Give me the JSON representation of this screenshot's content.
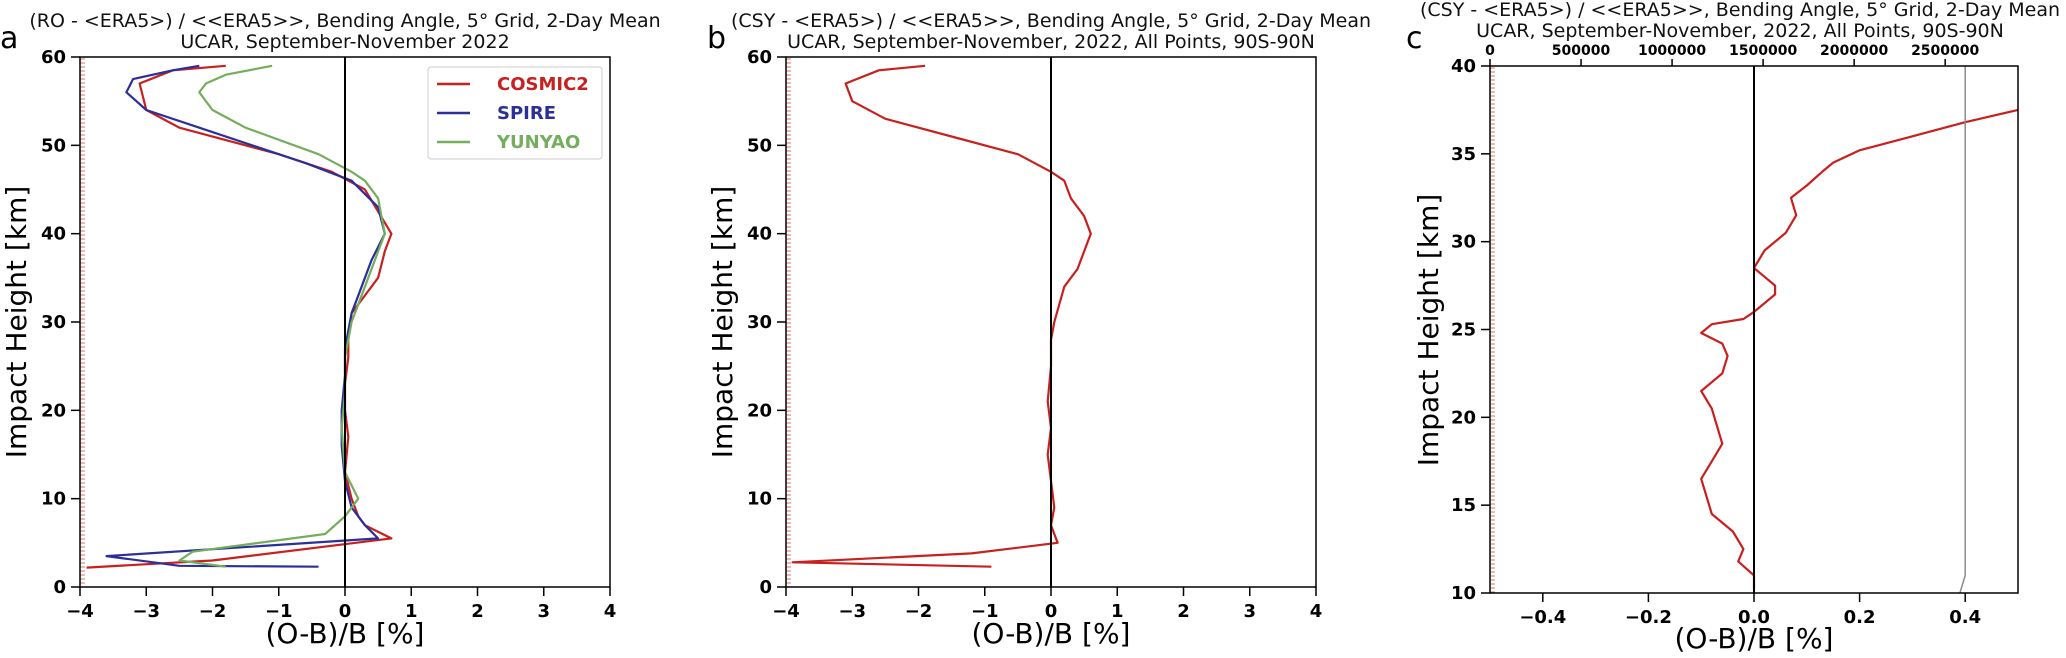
{
  "chart_data": [
    {
      "panel": "a",
      "type": "line",
      "title": "(RO - <ERA5>) / <<ERA5>>, Bending Angle, 5° Grid, 2-Day Mean",
      "subtitle": "UCAR, September-November 2022",
      "xlabel": "(O-B)/B [%]",
      "ylabel": "Impact Height [km]",
      "xlim": [
        -4,
        4
      ],
      "ylim": [
        0,
        60
      ],
      "xticks": [
        -4,
        -3,
        -2,
        -1,
        0,
        1,
        2,
        3,
        4
      ],
      "yticks": [
        0,
        10,
        20,
        30,
        40,
        50,
        60
      ],
      "legend_position": "top-right",
      "series": [
        {
          "name": "COSMIC2",
          "color": "#c8201e",
          "x": [
            -3.9,
            -2.0,
            0.7,
            0.3,
            0.2,
            0.1,
            0.0,
            0.05,
            0.0,
            0.0,
            0.05,
            0.05,
            0.1,
            0.3,
            0.5,
            0.6,
            0.7,
            0.3,
            -0.2,
            -1.0,
            -2.5,
            -3.0,
            -3.1,
            -2.6,
            -1.8
          ],
          "y": [
            2.2,
            3.0,
            5.5,
            7.0,
            8.0,
            10.0,
            13.0,
            17.0,
            20.0,
            23.0,
            26.0,
            28.0,
            31.0,
            33.0,
            35.0,
            38.0,
            40.0,
            45.0,
            47.0,
            49.0,
            52.0,
            54.0,
            57.0,
            58.5,
            59.0
          ]
        },
        {
          "name": "SPIRE",
          "color": "#2b2f9a",
          "x": [
            -0.4,
            -2.5,
            -3.6,
            0.5,
            0.3,
            0.1,
            0.0,
            -0.05,
            -0.05,
            0.0,
            0.0,
            0.05,
            0.1,
            0.25,
            0.4,
            0.6,
            0.5,
            0.1,
            -0.6,
            -2.2,
            -3.0,
            -3.3,
            -3.2,
            -2.6,
            -2.2
          ],
          "y": [
            2.3,
            2.4,
            3.5,
            5.5,
            7.0,
            9.0,
            12.0,
            16.0,
            20.0,
            24.0,
            27.0,
            29.0,
            31.0,
            34.0,
            37.0,
            40.0,
            43.0,
            46.0,
            48.0,
            52.0,
            54.0,
            56.0,
            57.5,
            58.5,
            59.0
          ]
        },
        {
          "name": "YUNYAO",
          "color": "#74ad5c",
          "x": [
            -1.8,
            -2.5,
            -2.3,
            -0.3,
            0.0,
            0.2,
            0.0,
            -0.05,
            0.0,
            0.0,
            0.05,
            0.1,
            0.3,
            0.6,
            0.5,
            0.3,
            0.1,
            -0.4,
            -1.5,
            -2.0,
            -2.2,
            -2.1,
            -1.8,
            -1.1
          ],
          "y": [
            2.3,
            3.0,
            4.0,
            6.0,
            8.0,
            10.0,
            13.0,
            18.0,
            22.0,
            26.0,
            28.0,
            30.0,
            34.0,
            40.0,
            44.0,
            46.0,
            47.0,
            49.0,
            52.0,
            54.0,
            56.0,
            57.0,
            58.0,
            59.0
          ]
        }
      ]
    },
    {
      "panel": "b",
      "type": "line",
      "title": "(CSY - <ERA5>) / <<ERA5>>, Bending Angle, 5° Grid, 2-Day Mean",
      "subtitle": "UCAR, September-November, 2022, All Points, 90S-90N",
      "xlabel": "(O-B)/B [%]",
      "ylabel": "Impact Height [km]",
      "xlim": [
        -4,
        4
      ],
      "ylim": [
        0,
        60
      ],
      "xticks": [
        -4,
        -3,
        -2,
        -1,
        0,
        1,
        2,
        3,
        4
      ],
      "yticks": [
        0,
        10,
        20,
        30,
        40,
        50,
        60
      ],
      "series": [
        {
          "name": "",
          "color": "#c8201e",
          "x": [
            -0.9,
            -3.9,
            -1.2,
            0.1,
            0.0,
            0.05,
            0.0,
            -0.05,
            0.0,
            -0.05,
            0.0,
            0.0,
            0.05,
            0.2,
            0.4,
            0.6,
            0.5,
            0.3,
            0.2,
            0.0,
            -0.5,
            -1.5,
            -2.5,
            -3.0,
            -3.1,
            -2.6,
            -1.9
          ],
          "y": [
            2.3,
            2.8,
            3.8,
            5.0,
            7.0,
            9.0,
            12.0,
            15.0,
            18.0,
            21.0,
            25.0,
            28.0,
            30.0,
            34.0,
            36.0,
            40.0,
            42.0,
            44.0,
            46.0,
            47.0,
            49.0,
            51.0,
            53.0,
            55.0,
            57.0,
            58.5,
            59.0
          ]
        }
      ]
    },
    {
      "panel": "c",
      "type": "line",
      "title": "(CSY - <ERA5>) / <<ERA5>>, Bending Angle, 5° Grid, 2-Day Mean",
      "subtitle": "UCAR, September-November, 2022, All Points, 90S-90N",
      "xlabel": "(O-B)/B [%]",
      "ylabel": "Impact Height [km]",
      "xlim": [
        -0.5,
        0.5
      ],
      "ylim": [
        10,
        40
      ],
      "xticks": [
        -0.4,
        -0.2,
        0.0,
        0.2,
        0.4
      ],
      "xtick_labels": [
        "−0.4",
        "−0.2",
        "0.0",
        "0.2",
        "0.4"
      ],
      "yticks": [
        10,
        15,
        20,
        25,
        30,
        35,
        40
      ],
      "top_xlim": [
        0,
        2900000
      ],
      "top_xticks": [
        0,
        500000,
        1000000,
        1500000,
        2000000,
        2500000
      ],
      "series": [
        {
          "name": "",
          "color": "#c8201e",
          "x": [
            0.0,
            0.0,
            -0.03,
            -0.02,
            -0.04,
            -0.08,
            -0.09,
            -0.1,
            -0.08,
            -0.06,
            -0.07,
            -0.08,
            -0.1,
            -0.06,
            -0.05,
            -0.06,
            -0.1,
            -0.08,
            -0.02,
            0.0,
            0.02,
            0.04,
            0.04,
            0.02,
            0.0,
            0.02,
            0.06,
            0.08,
            0.07,
            0.1,
            0.13,
            0.15,
            0.2,
            0.3,
            0.4,
            0.5
          ],
          "y": [
            10.2,
            11.0,
            11.8,
            12.5,
            13.5,
            14.5,
            15.5,
            16.5,
            17.5,
            18.5,
            19.5,
            20.5,
            21.5,
            22.5,
            23.5,
            24.2,
            24.8,
            25.3,
            25.6,
            26.0,
            26.5,
            27.0,
            27.5,
            28.0,
            28.5,
            29.5,
            30.5,
            31.5,
            32.5,
            33.2,
            34.0,
            34.5,
            35.2,
            36.0,
            36.8,
            37.5
          ]
        },
        {
          "name": "",
          "color": "#8c8c8c",
          "x": [
            0.39,
            0.4,
            0.4,
            0.4,
            0.4,
            0.4,
            0.4,
            0.4
          ],
          "y": [
            10.0,
            11.0,
            15.0,
            20.0,
            25.0,
            30.0,
            35.0,
            40.0
          ]
        }
      ]
    }
  ],
  "legend": [
    {
      "label": "COSMIC2",
      "color": "#c8201e"
    },
    {
      "label": "SPIRE",
      "color": "#2b2f9a"
    },
    {
      "label": "YUNYAO",
      "color": "#74ad5c"
    }
  ]
}
